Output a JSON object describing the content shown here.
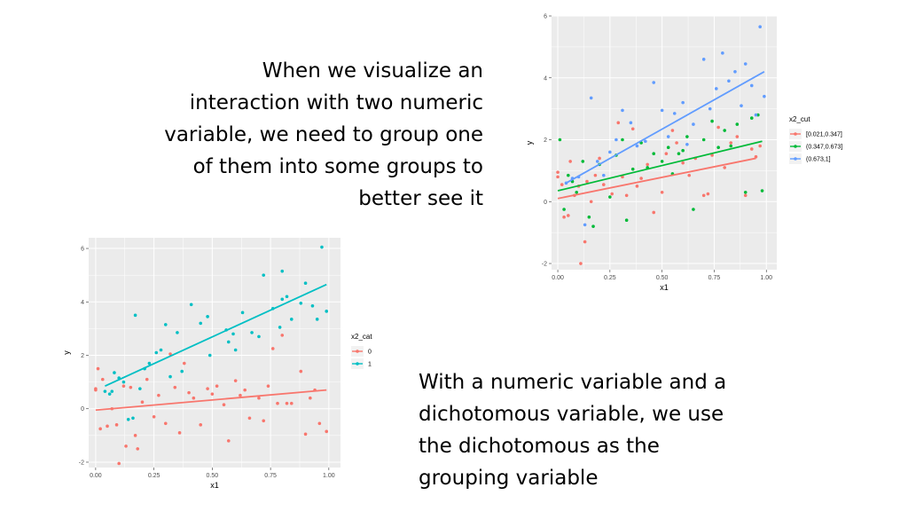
{
  "slide": {
    "text_top_lines": [
      "When we visualize an",
      "interaction with two numeric",
      "variable, we need to group one",
      "of them into some groups to",
      "better see it"
    ],
    "text_bottom_lines": [
      "With a numeric variable and a",
      "dichotomous variable, we use",
      "the dichotomous as the",
      "grouping variable"
    ]
  },
  "chart_data": [
    {
      "type": "scatter",
      "xlabel": "x1",
      "ylabel": "y",
      "xlim": [
        -0.03,
        1.05
      ],
      "ylim": [
        -2.2,
        6.0
      ],
      "x_ticks": [
        0.0,
        0.25,
        0.5,
        0.75,
        1.0
      ],
      "x_tick_labels": [
        "0.00",
        "0.25",
        "0.50",
        "0.75",
        "1.00"
      ],
      "y_ticks": [
        -2,
        0,
        2,
        4,
        6
      ],
      "y_tick_labels": [
        "-2",
        "0",
        "2",
        "4",
        "6"
      ],
      "grid": true,
      "legend_title": "x2_cut",
      "legend_position": "right",
      "series": [
        {
          "name": "[0.021,0.347]",
          "color": "#F8766D",
          "points": [
            [
              0.0,
              0.8
            ],
            [
              0.0,
              0.95
            ],
            [
              0.02,
              0.55
            ],
            [
              0.03,
              -0.5
            ],
            [
              0.05,
              -0.45
            ],
            [
              0.06,
              1.3
            ],
            [
              0.08,
              0.2
            ],
            [
              0.1,
              0.5
            ],
            [
              0.11,
              -2.0
            ],
            [
              0.13,
              -1.3
            ],
            [
              0.14,
              0.65
            ],
            [
              0.16,
              0.0
            ],
            [
              0.18,
              0.85
            ],
            [
              0.2,
              1.4
            ],
            [
              0.22,
              0.55
            ],
            [
              0.26,
              0.25
            ],
            [
              0.29,
              2.55
            ],
            [
              0.31,
              0.8
            ],
            [
              0.33,
              0.2
            ],
            [
              0.36,
              2.35
            ],
            [
              0.38,
              0.5
            ],
            [
              0.4,
              0.75
            ],
            [
              0.43,
              1.2
            ],
            [
              0.46,
              -0.35
            ],
            [
              0.5,
              0.3
            ],
            [
              0.52,
              1.55
            ],
            [
              0.55,
              2.3
            ],
            [
              0.57,
              1.9
            ],
            [
              0.6,
              1.25
            ],
            [
              0.63,
              0.85
            ],
            [
              0.66,
              1.4
            ],
            [
              0.7,
              0.2
            ],
            [
              0.72,
              0.25
            ],
            [
              0.74,
              1.5
            ],
            [
              0.77,
              2.4
            ],
            [
              0.8,
              1.1
            ],
            [
              0.83,
              1.9
            ],
            [
              0.86,
              2.1
            ],
            [
              0.9,
              0.2
            ],
            [
              0.93,
              1.7
            ],
            [
              0.95,
              1.45
            ],
            [
              0.97,
              1.8
            ]
          ],
          "fit_line": [
            [
              0.0,
              0.1
            ],
            [
              0.95,
              1.4
            ]
          ]
        },
        {
          "name": "(0.347,0.673]",
          "color": "#00BA38",
          "points": [
            [
              0.01,
              2.0
            ],
            [
              0.03,
              -0.25
            ],
            [
              0.05,
              0.85
            ],
            [
              0.07,
              0.65
            ],
            [
              0.09,
              0.3
            ],
            [
              0.12,
              1.3
            ],
            [
              0.15,
              -0.5
            ],
            [
              0.17,
              -0.8
            ],
            [
              0.2,
              1.2
            ],
            [
              0.25,
              0.15
            ],
            [
              0.28,
              1.5
            ],
            [
              0.31,
              2.0
            ],
            [
              0.33,
              -0.6
            ],
            [
              0.36,
              1.05
            ],
            [
              0.4,
              1.9
            ],
            [
              0.43,
              1.1
            ],
            [
              0.46,
              1.55
            ],
            [
              0.5,
              1.3
            ],
            [
              0.53,
              1.75
            ],
            [
              0.55,
              0.9
            ],
            [
              0.58,
              1.55
            ],
            [
              0.6,
              1.65
            ],
            [
              0.62,
              2.1
            ],
            [
              0.65,
              -0.25
            ],
            [
              0.7,
              2.0
            ],
            [
              0.74,
              2.6
            ],
            [
              0.77,
              1.75
            ],
            [
              0.8,
              2.3
            ],
            [
              0.83,
              1.8
            ],
            [
              0.86,
              2.5
            ],
            [
              0.9,
              0.3
            ],
            [
              0.93,
              2.7
            ],
            [
              0.96,
              2.8
            ],
            [
              0.98,
              0.35
            ]
          ],
          "fit_line": [
            [
              0.0,
              0.35
            ],
            [
              0.98,
              1.95
            ]
          ]
        },
        {
          "name": "(0.673,1]",
          "color": "#619CFF",
          "points": [
            [
              0.04,
              0.6
            ],
            [
              0.07,
              0.75
            ],
            [
              0.1,
              0.8
            ],
            [
              0.13,
              -0.75
            ],
            [
              0.16,
              3.35
            ],
            [
              0.19,
              1.3
            ],
            [
              0.22,
              0.85
            ],
            [
              0.25,
              1.6
            ],
            [
              0.28,
              2.0
            ],
            [
              0.31,
              2.95
            ],
            [
              0.35,
              2.55
            ],
            [
              0.38,
              1.8
            ],
            [
              0.42,
              1.95
            ],
            [
              0.46,
              3.85
            ],
            [
              0.5,
              2.95
            ],
            [
              0.53,
              2.1
            ],
            [
              0.56,
              2.85
            ],
            [
              0.6,
              3.2
            ],
            [
              0.62,
              1.85
            ],
            [
              0.65,
              2.5
            ],
            [
              0.7,
              4.6
            ],
            [
              0.73,
              3.0
            ],
            [
              0.76,
              3.65
            ],
            [
              0.79,
              4.8
            ],
            [
              0.82,
              3.9
            ],
            [
              0.85,
              4.2
            ],
            [
              0.88,
              3.1
            ],
            [
              0.9,
              4.45
            ],
            [
              0.93,
              3.75
            ],
            [
              0.95,
              2.8
            ],
            [
              0.97,
              5.65
            ],
            [
              0.99,
              3.4
            ]
          ],
          "fit_line": [
            [
              0.04,
              0.6
            ],
            [
              0.99,
              4.2
            ]
          ]
        }
      ]
    },
    {
      "type": "scatter",
      "xlabel": "x1",
      "ylabel": "y",
      "xlim": [
        -0.03,
        1.05
      ],
      "ylim": [
        -2.2,
        6.4
      ],
      "x_ticks": [
        0.0,
        0.25,
        0.5,
        0.75,
        1.0
      ],
      "x_tick_labels": [
        "0.00",
        "0.25",
        "0.50",
        "0.75",
        "1.00"
      ],
      "y_ticks": [
        -2,
        0,
        2,
        4,
        6
      ],
      "y_tick_labels": [
        "-2",
        "0",
        "2",
        "4",
        "6"
      ],
      "grid": true,
      "legend_title": "x2_cat",
      "legend_position": "right",
      "series": [
        {
          "name": "0",
          "color": "#F8766D",
          "points": [
            [
              0.0,
              0.7
            ],
            [
              0.0,
              0.75
            ],
            [
              0.01,
              1.5
            ],
            [
              0.02,
              -0.75
            ],
            [
              0.03,
              1.1
            ],
            [
              0.05,
              -0.65
            ],
            [
              0.07,
              0.0
            ],
            [
              0.09,
              -0.6
            ],
            [
              0.1,
              -2.05
            ],
            [
              0.12,
              0.85
            ],
            [
              0.13,
              -1.4
            ],
            [
              0.15,
              0.8
            ],
            [
              0.17,
              -1.0
            ],
            [
              0.18,
              -1.5
            ],
            [
              0.2,
              0.25
            ],
            [
              0.22,
              1.1
            ],
            [
              0.25,
              -0.3
            ],
            [
              0.27,
              0.5
            ],
            [
              0.3,
              -0.55
            ],
            [
              0.32,
              2.05
            ],
            [
              0.34,
              0.8
            ],
            [
              0.36,
              -0.9
            ],
            [
              0.38,
              1.7
            ],
            [
              0.4,
              0.6
            ],
            [
              0.42,
              0.4
            ],
            [
              0.45,
              -0.6
            ],
            [
              0.48,
              0.75
            ],
            [
              0.5,
              0.55
            ],
            [
              0.52,
              0.85
            ],
            [
              0.55,
              0.15
            ],
            [
              0.57,
              -1.2
            ],
            [
              0.6,
              1.05
            ],
            [
              0.62,
              0.5
            ],
            [
              0.64,
              0.7
            ],
            [
              0.66,
              -0.35
            ],
            [
              0.7,
              0.4
            ],
            [
              0.72,
              -0.45
            ],
            [
              0.74,
              0.85
            ],
            [
              0.76,
              2.25
            ],
            [
              0.78,
              0.2
            ],
            [
              0.8,
              2.75
            ],
            [
              0.82,
              0.2
            ],
            [
              0.84,
              0.2
            ],
            [
              0.88,
              1.4
            ],
            [
              0.9,
              -0.95
            ],
            [
              0.92,
              0.4
            ],
            [
              0.94,
              0.7
            ],
            [
              0.96,
              -0.55
            ],
            [
              0.99,
              -0.85
            ]
          ],
          "fit_line": [
            [
              0.0,
              -0.05
            ],
            [
              0.99,
              0.7
            ]
          ]
        },
        {
          "name": "1",
          "color": "#00BFC4",
          "points": [
            [
              0.04,
              0.65
            ],
            [
              0.06,
              0.55
            ],
            [
              0.07,
              0.65
            ],
            [
              0.08,
              1.35
            ],
            [
              0.1,
              1.15
            ],
            [
              0.12,
              1.0
            ],
            [
              0.14,
              -0.4
            ],
            [
              0.16,
              -0.35
            ],
            [
              0.17,
              3.5
            ],
            [
              0.19,
              0.75
            ],
            [
              0.21,
              1.5
            ],
            [
              0.23,
              1.7
            ],
            [
              0.26,
              2.1
            ],
            [
              0.28,
              2.2
            ],
            [
              0.3,
              3.15
            ],
            [
              0.32,
              1.2
            ],
            [
              0.35,
              2.85
            ],
            [
              0.37,
              1.4
            ],
            [
              0.41,
              3.9
            ],
            [
              0.45,
              3.2
            ],
            [
              0.48,
              3.45
            ],
            [
              0.49,
              2.0
            ],
            [
              0.56,
              2.95
            ],
            [
              0.57,
              2.5
            ],
            [
              0.59,
              2.8
            ],
            [
              0.6,
              2.2
            ],
            [
              0.63,
              3.6
            ],
            [
              0.67,
              2.85
            ],
            [
              0.7,
              2.7
            ],
            [
              0.72,
              5.0
            ],
            [
              0.76,
              3.75
            ],
            [
              0.79,
              3.05
            ],
            [
              0.8,
              4.1
            ],
            [
              0.82,
              4.2
            ],
            [
              0.84,
              3.35
            ],
            [
              0.88,
              3.95
            ],
            [
              0.9,
              4.7
            ],
            [
              0.93,
              3.85
            ],
            [
              0.95,
              3.35
            ],
            [
              0.97,
              6.05
            ],
            [
              0.99,
              3.65
            ],
            [
              0.8,
              5.15
            ]
          ],
          "fit_line": [
            [
              0.04,
              0.85
            ],
            [
              0.99,
              4.65
            ]
          ]
        }
      ]
    }
  ]
}
